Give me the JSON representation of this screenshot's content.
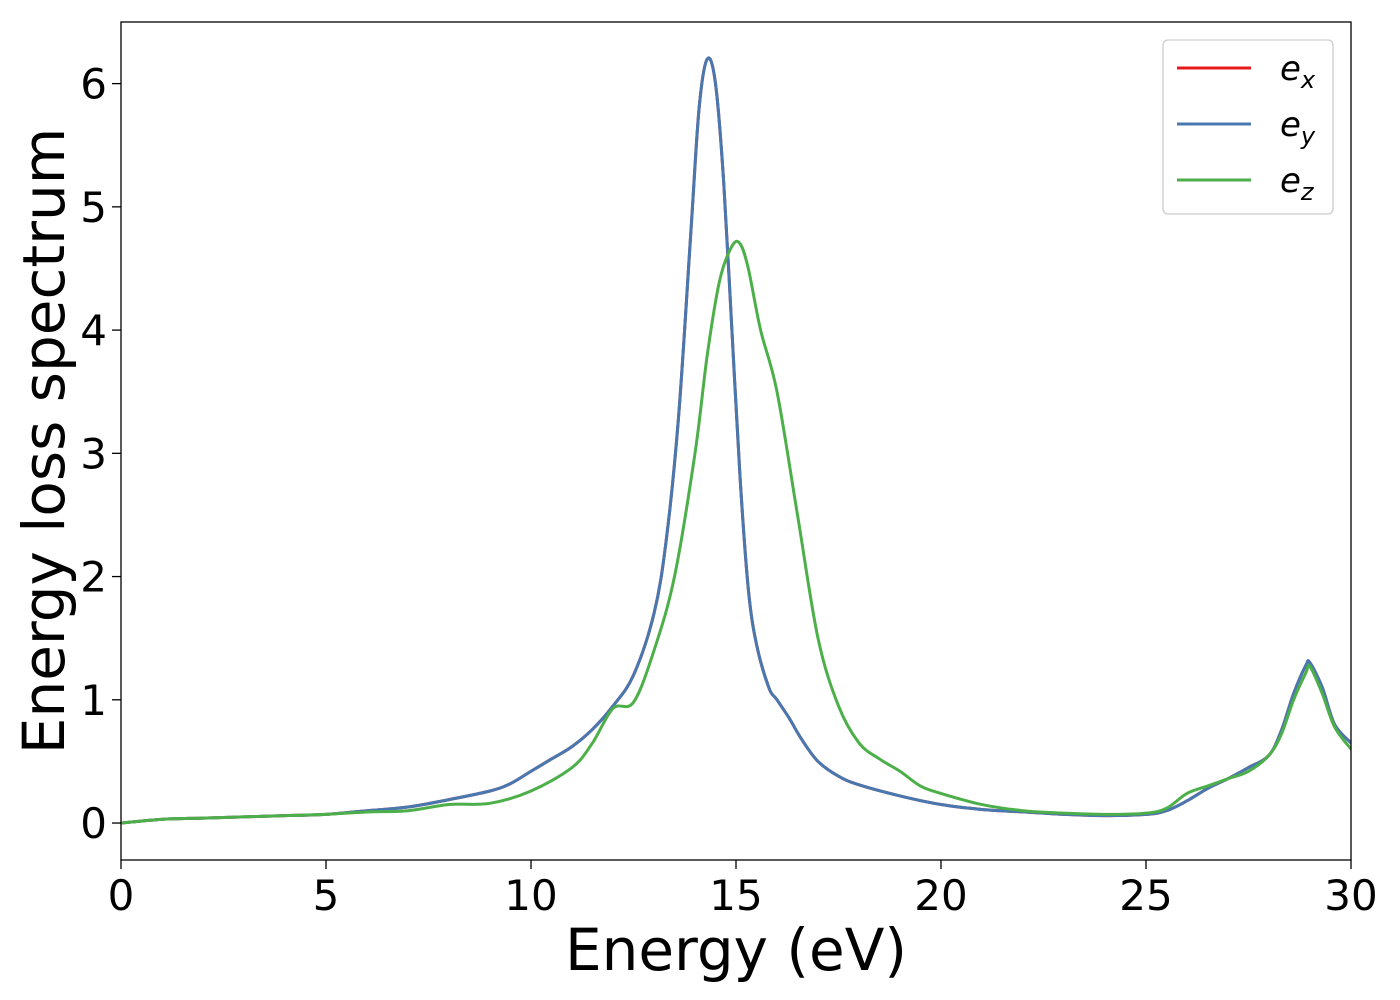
{
  "chart_data": {
    "type": "line",
    "title": "",
    "xlabel": "Energy (eV)",
    "ylabel": "Energy loss spectrum",
    "xlim": [
      0,
      30
    ],
    "ylim": [
      -0.3,
      6.5
    ],
    "xticks": [
      0,
      5,
      10,
      15,
      20,
      25,
      30
    ],
    "xtick_labels": [
      "0",
      "5",
      "10",
      "15",
      "20",
      "25",
      "30"
    ],
    "yticks": [
      0,
      1,
      2,
      3,
      4,
      5,
      6
    ],
    "ytick_labels": [
      "0",
      "1",
      "2",
      "3",
      "4",
      "5",
      "6"
    ],
    "grid": false,
    "legend_position": "top-right",
    "series": [
      {
        "name": "e_x",
        "label_main": "e",
        "label_sub": "x",
        "color": "#e41a1c",
        "x": [
          0,
          1,
          2,
          3,
          4,
          5,
          6,
          7,
          8,
          9,
          9.5,
          10,
          10.5,
          11,
          11.5,
          12,
          12.5,
          13,
          13.3,
          13.6,
          13.9,
          14.1,
          14.3,
          14.5,
          14.7,
          14.9,
          15.1,
          15.3,
          15.5,
          15.8,
          16,
          16.3,
          16.6,
          17,
          17.5,
          18,
          19,
          20,
          21,
          22,
          23,
          24,
          25,
          25.5,
          26,
          26.5,
          27,
          27.5,
          28,
          28.3,
          28.6,
          28.9,
          29,
          29.3,
          29.6,
          30
        ],
        "y": [
          0,
          0.03,
          0.04,
          0.05,
          0.06,
          0.07,
          0.1,
          0.13,
          0.19,
          0.26,
          0.32,
          0.42,
          0.52,
          0.62,
          0.76,
          0.95,
          1.2,
          1.7,
          2.3,
          3.3,
          4.8,
          5.8,
          6.2,
          6.0,
          5.2,
          4.0,
          2.8,
          1.9,
          1.45,
          1.1,
          1.0,
          0.85,
          0.68,
          0.5,
          0.38,
          0.31,
          0.22,
          0.15,
          0.11,
          0.09,
          0.07,
          0.06,
          0.07,
          0.1,
          0.18,
          0.28,
          0.36,
          0.45,
          0.55,
          0.75,
          1.05,
          1.28,
          1.3,
          1.1,
          0.8,
          0.65
        ]
      },
      {
        "name": "e_y",
        "label_main": "e",
        "label_sub": "y",
        "color": "#4878b0",
        "x": [
          0,
          1,
          2,
          3,
          4,
          5,
          6,
          7,
          8,
          9,
          9.5,
          10,
          10.5,
          11,
          11.5,
          12,
          12.5,
          13,
          13.3,
          13.6,
          13.9,
          14.1,
          14.3,
          14.5,
          14.7,
          14.9,
          15.1,
          15.3,
          15.5,
          15.8,
          16,
          16.3,
          16.6,
          17,
          17.5,
          18,
          19,
          20,
          21,
          22,
          23,
          24,
          25,
          25.5,
          26,
          26.5,
          27,
          27.5,
          28,
          28.3,
          28.6,
          28.9,
          29,
          29.3,
          29.6,
          30
        ],
        "y": [
          0,
          0.03,
          0.04,
          0.05,
          0.06,
          0.07,
          0.1,
          0.13,
          0.19,
          0.26,
          0.32,
          0.42,
          0.52,
          0.62,
          0.76,
          0.95,
          1.2,
          1.7,
          2.3,
          3.3,
          4.8,
          5.8,
          6.2,
          6.0,
          5.2,
          4.0,
          2.8,
          1.9,
          1.45,
          1.1,
          1.0,
          0.85,
          0.68,
          0.5,
          0.38,
          0.31,
          0.22,
          0.15,
          0.11,
          0.09,
          0.07,
          0.06,
          0.07,
          0.1,
          0.18,
          0.28,
          0.36,
          0.45,
          0.55,
          0.75,
          1.05,
          1.28,
          1.3,
          1.1,
          0.8,
          0.65
        ]
      },
      {
        "name": "e_z",
        "label_main": "e",
        "label_sub": "z",
        "color": "#4daf4a",
        "x": [
          0,
          1,
          2,
          3,
          4,
          5,
          6,
          7,
          8,
          9,
          10,
          11,
          11.5,
          12,
          12.5,
          13,
          13.5,
          14,
          14.3,
          14.6,
          14.9,
          15.1,
          15.3,
          15.6,
          16,
          16.5,
          17,
          17.5,
          18,
          18.5,
          19,
          19.5,
          20,
          21,
          22,
          23,
          24,
          25,
          25.5,
          26,
          26.5,
          27,
          27.5,
          28,
          28.3,
          28.6,
          28.9,
          29,
          29.3,
          29.6,
          30
        ],
        "y": [
          0,
          0.03,
          0.04,
          0.05,
          0.06,
          0.07,
          0.09,
          0.1,
          0.15,
          0.16,
          0.26,
          0.45,
          0.65,
          0.93,
          0.98,
          1.4,
          2.0,
          3.0,
          3.8,
          4.4,
          4.68,
          4.7,
          4.5,
          4.0,
          3.5,
          2.5,
          1.5,
          0.95,
          0.65,
          0.52,
          0.42,
          0.3,
          0.24,
          0.15,
          0.1,
          0.08,
          0.07,
          0.08,
          0.12,
          0.24,
          0.3,
          0.36,
          0.42,
          0.55,
          0.72,
          1.0,
          1.22,
          1.27,
          1.05,
          0.78,
          0.6
        ]
      }
    ]
  }
}
